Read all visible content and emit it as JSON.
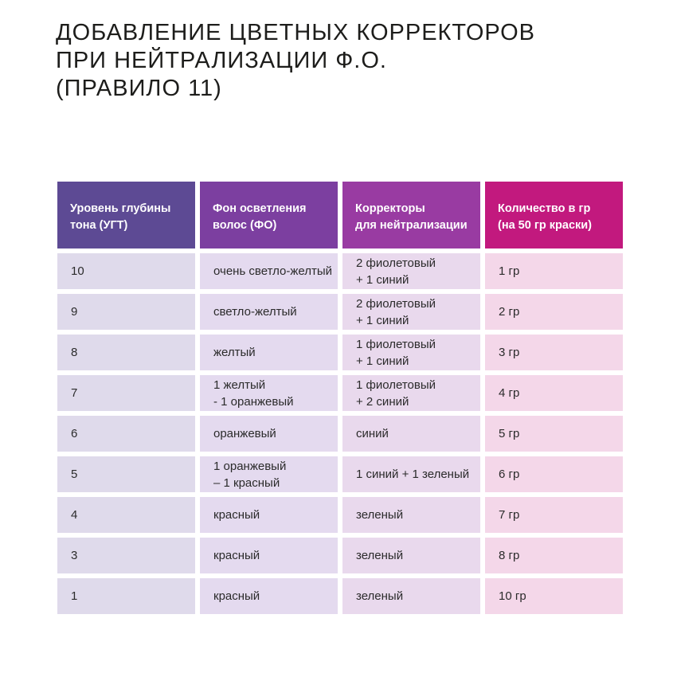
{
  "title": "ДОБАВЛЕНИЕ ЦВЕТНЫХ КОРРЕКТОРОВ\nПРИ НЕЙТРАЛИЗАЦИИ Ф.О.\n(ПРАВИЛО 11)",
  "colors": {
    "header_col1": "#5d4a94",
    "header_col2": "#7c3fa0",
    "header_col3": "#993ba2",
    "header_col4": "#c2197e",
    "body_col1": "#dfdaeb",
    "body_col2": "#e4daef",
    "body_col3": "#e9d9ed",
    "body_col4": "#f4d7e9",
    "title_text": "#1d1d1b",
    "body_text": "#2b2b2b",
    "header_text": "#ffffff"
  },
  "table": {
    "headers": [
      "Уровень глубины\nтона (УГТ)",
      "Фон осветления\nволос (ФО)",
      "Корректоры\nдля нейтрализации",
      "Количество в гр\n(на 50 гр краски)"
    ],
    "rows": [
      [
        "10",
        "очень светло-желтый",
        "2 фиолетовый\n+ 1 синий",
        "1 гр"
      ],
      [
        "9",
        "светло-желтый",
        "2 фиолетовый\n+ 1 синий",
        "2 гр"
      ],
      [
        "8",
        "желтый",
        "1 фиолетовый\n+ 1 синий",
        "3 гр"
      ],
      [
        "7",
        "1 желтый\n- 1 оранжевый",
        "1 фиолетовый\n+ 2 синий",
        "4 гр"
      ],
      [
        "6",
        "оранжевый",
        "синий",
        "5 гр"
      ],
      [
        "5",
        "1 оранжевый\n– 1 красный",
        "1 синий + 1 зеленый",
        "6 гр"
      ],
      [
        "4",
        "красный",
        "зеленый",
        "7 гр"
      ],
      [
        "3",
        "красный",
        "зеленый",
        "8 гр"
      ],
      [
        "1",
        "красный",
        "зеленый",
        "10 гр"
      ]
    ]
  }
}
